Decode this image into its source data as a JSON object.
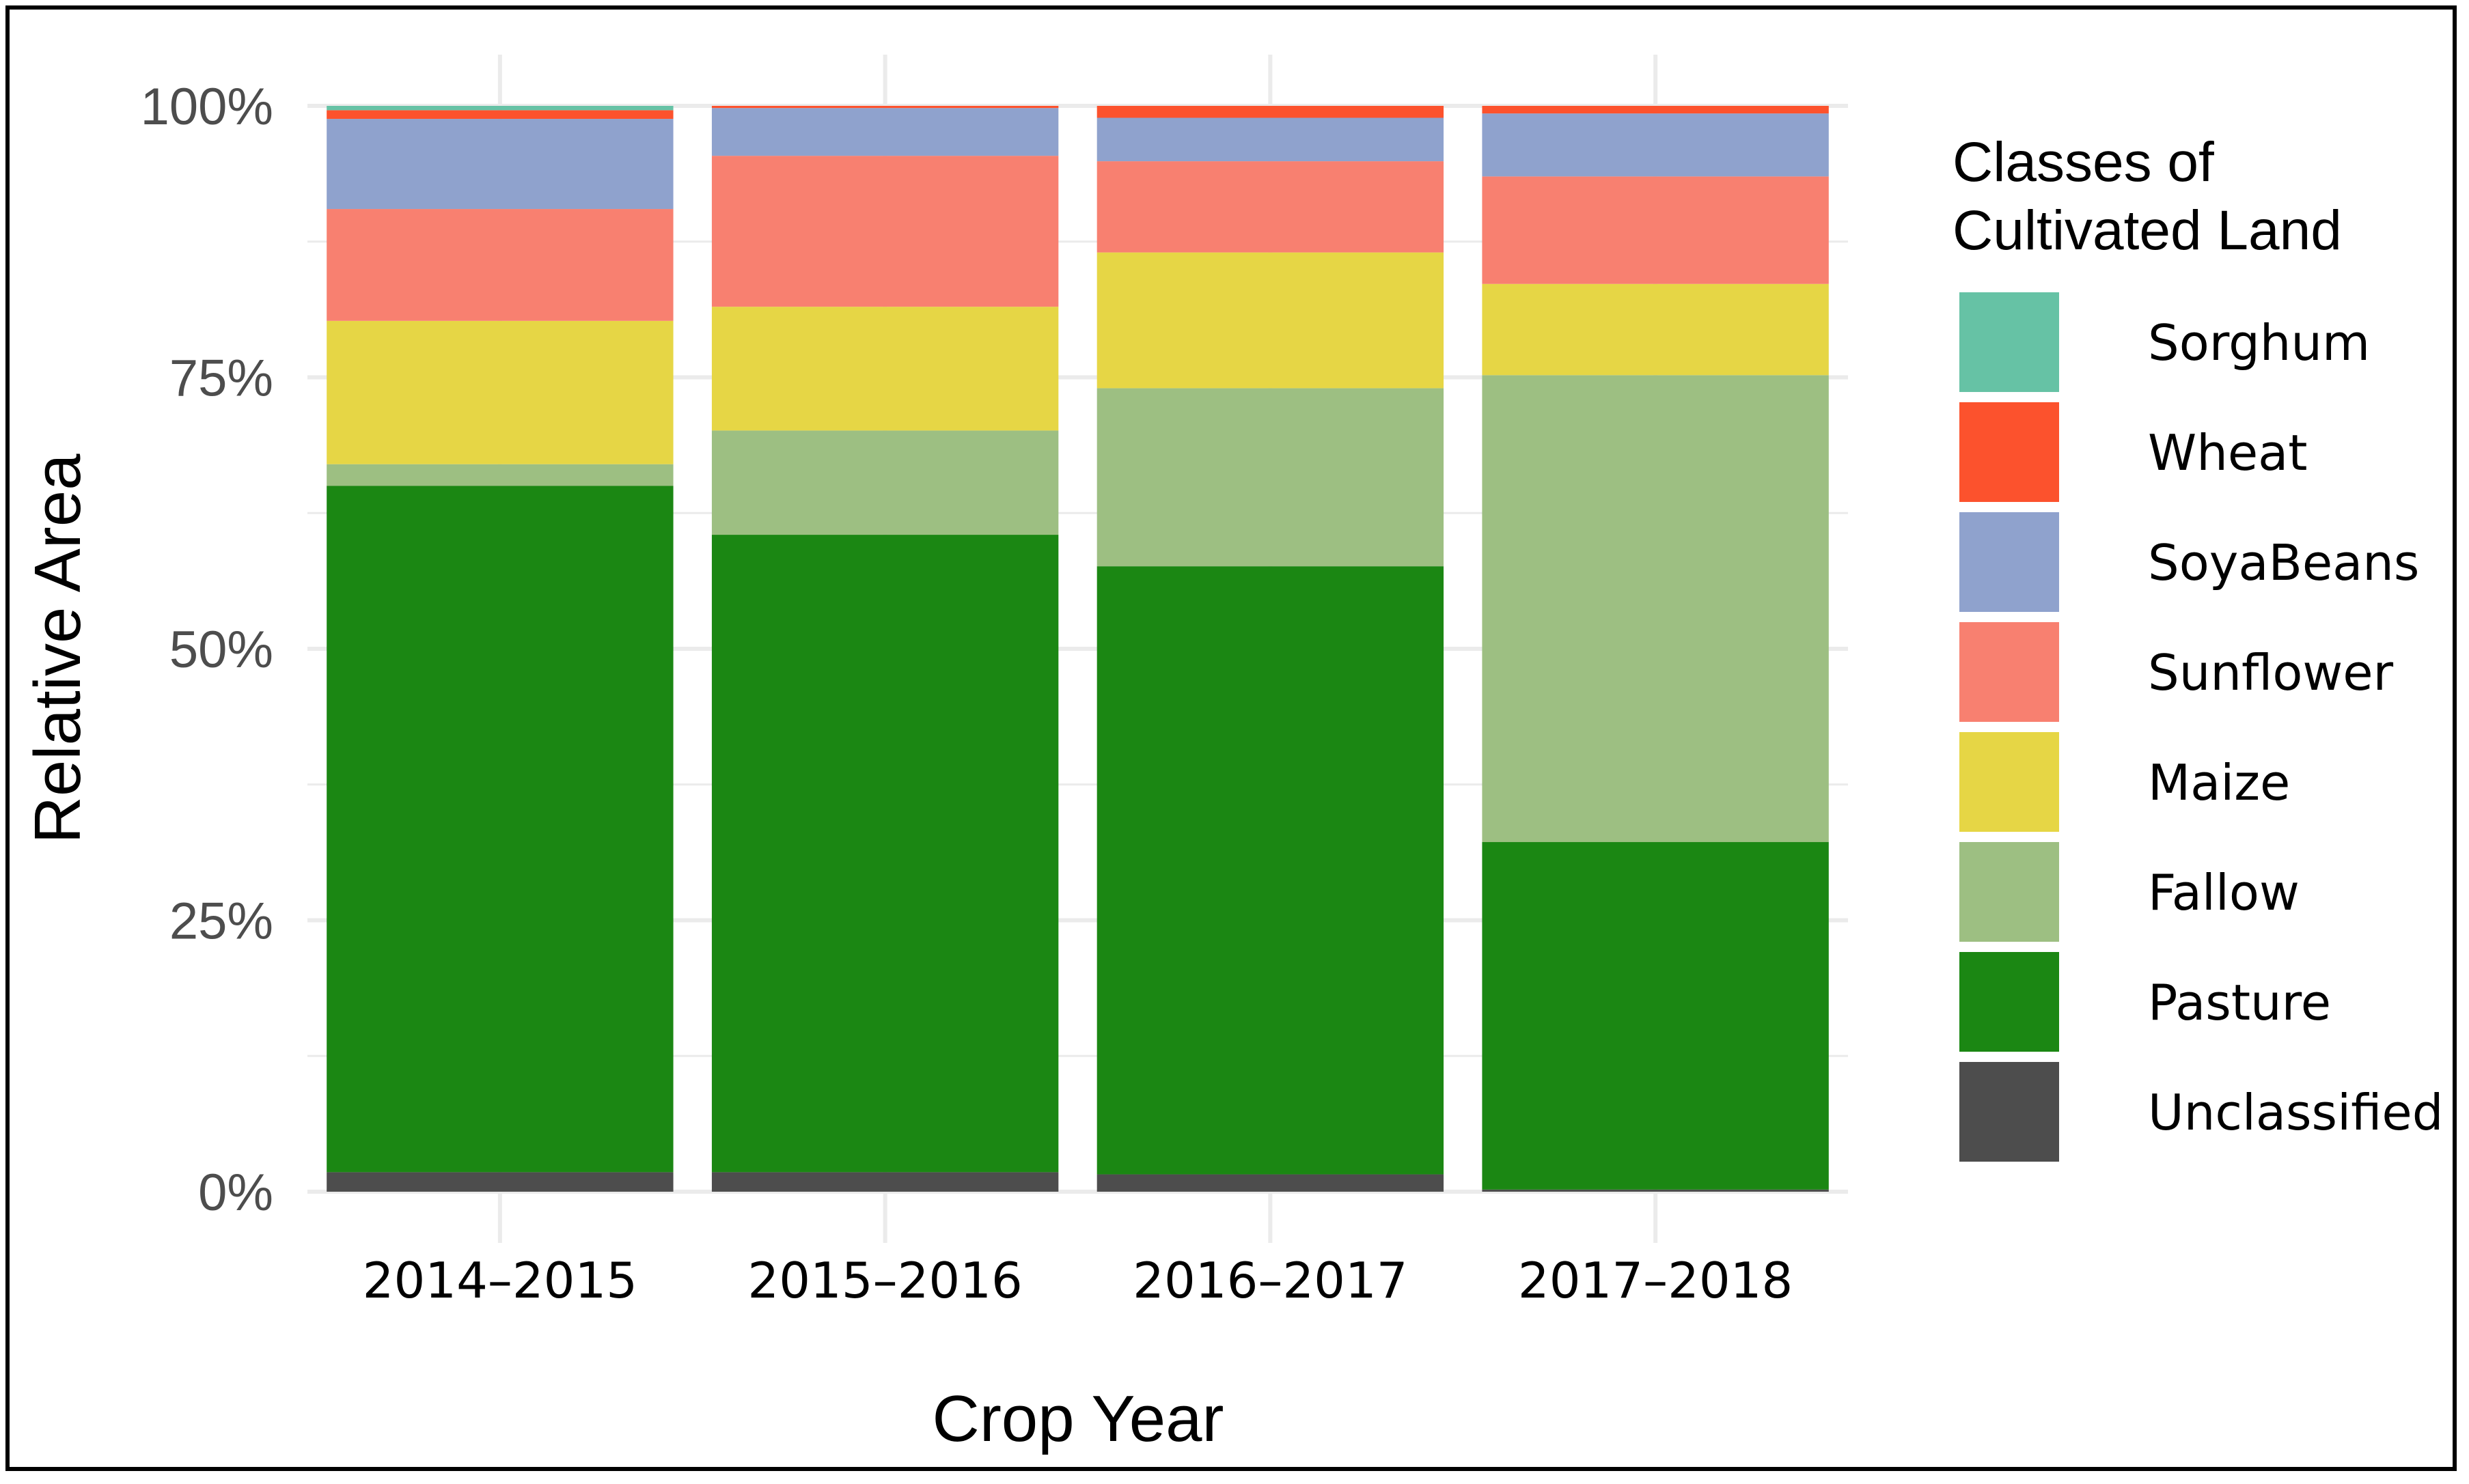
{
  "chart_data": {
    "type": "bar",
    "stacked": true,
    "xlabel": "Crop Year",
    "ylabel": "Relative Area",
    "categories": [
      "2014–2015",
      "2015–2016",
      "2016–2017",
      "2017–2018"
    ],
    "y_ticks": [
      "0%",
      "25%",
      "50%",
      "75%",
      "100%"
    ],
    "ylim": [
      0,
      100
    ],
    "legend_title_lines": [
      "Classes of",
      "Cultivated Land"
    ],
    "legend_position": "right",
    "series": [
      {
        "name": "Unclassified",
        "color": "#4d4d4d",
        "values": [
          1.8,
          1.8,
          1.6,
          0.2
        ]
      },
      {
        "name": "Pasture",
        "color": "#1b8713",
        "values": [
          63.2,
          58.7,
          56.0,
          32.0
        ]
      },
      {
        "name": "Fallow",
        "color": "#9dbf82",
        "values": [
          2.0,
          9.6,
          16.4,
          43.0
        ]
      },
      {
        "name": "Maize",
        "color": "#e6d645",
        "values": [
          13.2,
          11.4,
          12.5,
          8.4
        ]
      },
      {
        "name": "Sunflower",
        "color": "#f88070",
        "values": [
          10.3,
          13.9,
          8.4,
          9.9
        ]
      },
      {
        "name": "SoyaBeans",
        "color": "#8fa2cd",
        "values": [
          8.3,
          4.4,
          4.0,
          5.8
        ]
      },
      {
        "name": "Wheat",
        "color": "#fc522d",
        "values": [
          0.8,
          0.2,
          1.1,
          0.7
        ]
      },
      {
        "name": "Sorghum",
        "color": "#66c2a5",
        "values": [
          0.4,
          0.0,
          0.0,
          0.0
        ]
      }
    ]
  }
}
